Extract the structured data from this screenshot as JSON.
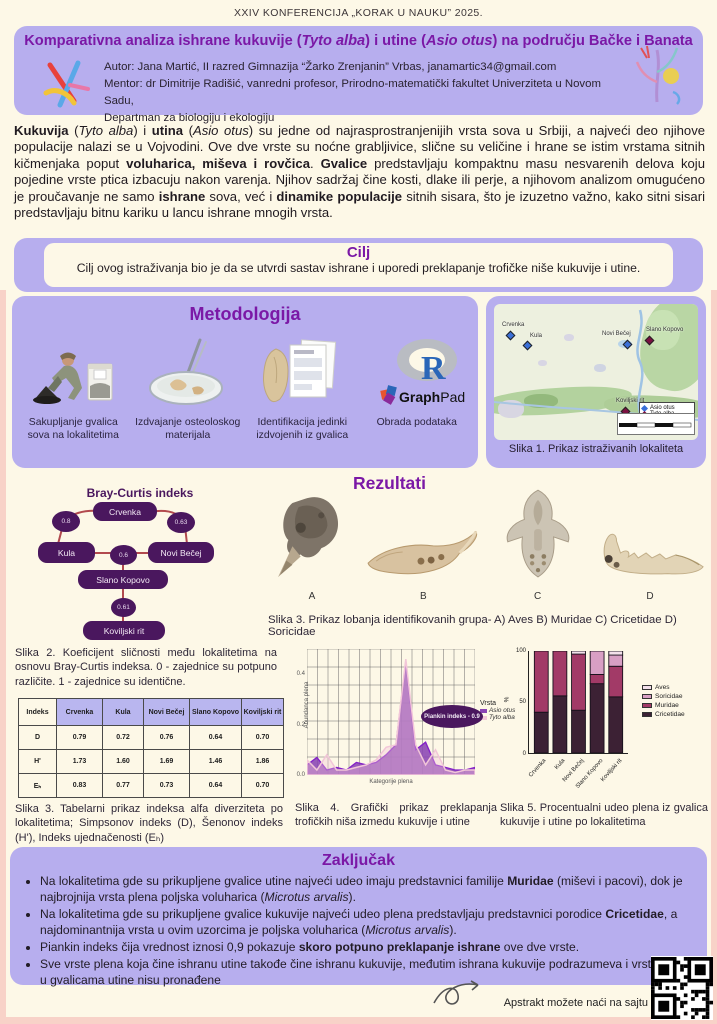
{
  "colors": {
    "accent_purple": "#7b18a6",
    "card_lavender": "#b7aeee",
    "node_purple": "#4a175e",
    "edge_red": "#b24a4e"
  },
  "page": {
    "conference": "XXIV KONFERENCIJA „KORAK U NAUKU” 2025."
  },
  "header": {
    "title_p1": "Komparativna analiza ishrane kukuvije (",
    "title_sp1": "Tyto alba",
    "title_p2": ") i utine (",
    "title_sp2": "Asio otus",
    "title_p3": ") na području Bačke i Banata",
    "author_line": "Autor: Jana Martić, II razred Gimnazija “Žarko Zrenjanin” Vrbas, janamartic34@gmail.com",
    "mentor_line1": "Mentor: dr Dimitrije Radišić, vanredni profesor, Prirodno-matematički fakultet Univerziteta u Novom Sadu,",
    "mentor_line2": "Departman za biologiju i ekologiju"
  },
  "intro": {
    "segments": [
      {
        "t": "Kukuvija",
        "b": 1
      },
      {
        "t": " ("
      },
      {
        "t": "Tyto alba",
        "i": 1
      },
      {
        "t": ") i "
      },
      {
        "t": "utina",
        "b": 1
      },
      {
        "t": " ("
      },
      {
        "t": "Asio otus",
        "i": 1
      },
      {
        "t": ") su jedne od najrasprostranjenijih vrsta sova u Srbiji, a najveći deo njihove populacije nalazi se u Vojvodini. Ove dve vrste su noćne grabljivice, slične su veličine i hrane se istim vrstama sitnih kičmenjaka poput "
      },
      {
        "t": "voluharica, miševa i rovčica",
        "b": 1
      },
      {
        "t": ". "
      },
      {
        "t": "Gvalice",
        "b": 1
      },
      {
        "t": " predstavljaju kompaktnu masu nesvarenih delova koju pojedine vrste ptica izbacuju nakon varenja. Njihov sadržaj čine kosti, dlake ili perje, a njihovom analizom omugućeno je proučavanje ne samo "
      },
      {
        "t": "ishrane",
        "b": 1
      },
      {
        "t": " sova, već i "
      },
      {
        "t": "dinamike populacije",
        "b": 1
      },
      {
        "t": " sitnih sisara, što je izuzetno važno, kako sitni sisari predstavljaju bitnu kariku u lancu ishrane mnogih vrsta."
      }
    ]
  },
  "cilj": {
    "title": "Cilj",
    "text": "Cilj ovog istraživanja bio je da se utvrdi sastav ishrane i uporedi preklapanje trofičke niše kukuvije i utine."
  },
  "methodology": {
    "title": "Metodologija",
    "steps": [
      {
        "icon": "pellet-collection-icon",
        "label": "Sakupljanje gvalica sova na lokalitetima"
      },
      {
        "icon": "petri-dish-icon",
        "label": "Izdvajanje osteoloskog materijala"
      },
      {
        "icon": "identification-icon",
        "label": "Identifikacija jedinki izdvojenih iz gvalica"
      },
      {
        "icon": "r-graphpad-icon",
        "label": "Obrada podataka"
      }
    ],
    "tools": {
      "r": "R",
      "graphpad_bold": "Graph",
      "graphpad_light": "Pad"
    }
  },
  "map": {
    "caption": "Slika 1. Prikaz istraživanih lokaliteta",
    "legend": [
      {
        "label": "Asio otus",
        "color": "#3a6fd8"
      },
      {
        "label": "Tyto alba",
        "color": "#7a1040"
      }
    ],
    "points": [
      {
        "name": "Crvenka",
        "species": "Asio otus"
      },
      {
        "name": "Kula",
        "species": "Asio otus"
      },
      {
        "name": "Novi Bečej",
        "species": "Asio otus"
      },
      {
        "name": "Slano Kopovo",
        "species": "Tyto alba"
      },
      {
        "name": "Koviljski rit",
        "species": "Tyto alba"
      }
    ]
  },
  "rezultati_title": "Rezultati",
  "bray_curtis": {
    "title": "Bray-Curtis indeks",
    "nodes": [
      "Crvenka",
      "Kula",
      "Novi Bečej",
      "Slano Kopovo",
      "Koviljski rit"
    ],
    "edges": [
      {
        "between": "Crvenka–Kula",
        "value": "0.8"
      },
      {
        "between": "Crvenka–Novi Bečej",
        "value": "0.63"
      },
      {
        "between": "Kula–Novi Bečej",
        "value": "0.6"
      },
      {
        "between": "Slano Kopovo–Koviljski rit",
        "value": "0.61"
      }
    ],
    "caption": "Slika 2. Koeficijent sličnosti među lokalitetima na osnovu Bray-Curtis indeksa. 0 - zajednice su potpuno različite. 1 - zajednice su identične."
  },
  "skulls": {
    "labels": [
      "A",
      "B",
      "C",
      "D"
    ],
    "caption": "Slika 3. Prikaz lobanja identifikovanih grupa- A) Aves B) Muridae C) Cricetidae D) Soricidae"
  },
  "alpha_table": {
    "headers": [
      "Indeks",
      "Crvenka",
      "Kula",
      "Novi Bečej",
      "Slano Kopovo",
      "Koviljski rit"
    ],
    "rows": [
      {
        "label": "D",
        "values": [
          "0.79",
          "0.72",
          "0.76",
          "0.64",
          "0.70"
        ]
      },
      {
        "label": "H'",
        "values": [
          "1.73",
          "1.60",
          "1.69",
          "1.46",
          "1.86"
        ]
      },
      {
        "label": "Eₕ",
        "values": [
          "0.83",
          "0.77",
          "0.73",
          "0.64",
          "0.70"
        ]
      }
    ],
    "caption": "Slika 3. Tabelarni prikaz indeksa alfa diverziteta po lokalitetima; Simpsonov indeks (D), Šenonov indeks (H'), Indeks ujednačenosti (Eₕ)"
  },
  "chart_data": [
    {
      "type": "area",
      "xlabel": "Kategorije plena",
      "ylabel": "Abundanca plena",
      "ylim": [
        0,
        0.5
      ],
      "yticks": [
        0,
        0.2,
        0.4
      ],
      "legend_title": "Vrsta",
      "annotation": "Piankin indeks - 0.9",
      "series": [
        {
          "name": "Asio otus",
          "color": "#8a43b4",
          "values": [
            0.04,
            0.07,
            0.02,
            0.03,
            0.02,
            0.05,
            0.04,
            0.05,
            0.08,
            0.12,
            0.45,
            0.1,
            0.13,
            0.04,
            0.03,
            0.02,
            0.02,
            0.03
          ]
        },
        {
          "name": "Tyto alba",
          "color": "#f2c6d8",
          "values": [
            0.06,
            0.02,
            0.08,
            0.02,
            0.02,
            0.03,
            0.04,
            0.06,
            0.11,
            0.12,
            0.46,
            0.12,
            0.04,
            0.1,
            0.02,
            0.01,
            0.02,
            0.02
          ]
        }
      ],
      "caption": "Slika 4. Grafički prikaz preklapanja trofičkih niša izmedu kukuvije i utine"
    },
    {
      "type": "bar",
      "stacked": true,
      "categories": [
        "Crvenka",
        "Kula",
        "Novi Bečej",
        "Slano Kopovo",
        "Koviljski rit"
      ],
      "series": [
        {
          "name": "Cricetidae",
          "color": "#3c2134",
          "values": [
            40,
            56,
            42,
            68,
            55
          ]
        },
        {
          "name": "Muridae",
          "color": "#a23a67",
          "values": [
            60,
            44,
            55,
            9,
            30
          ]
        },
        {
          "name": "Soricidae",
          "color": "#d89fc4",
          "values": [
            0,
            0,
            0,
            23,
            11
          ]
        },
        {
          "name": "Aves",
          "color": "#f3e0eb",
          "values": [
            0,
            0,
            3,
            0,
            4
          ]
        }
      ],
      "ylabel": "%",
      "yticks": [
        0,
        50,
        100
      ],
      "legend_order": [
        "Aves",
        "Soricidae",
        "Muridae",
        "Cricetidae"
      ],
      "caption": "Slika 5. Procentualni udeo plena iz gvalica kukuvije i utine po lokalitetima"
    }
  ],
  "conclusion": {
    "title": "Zaključak",
    "bullets": [
      [
        {
          "t": "Na lokalitetima gde su prikupljene gvalice utine najveći udeo imaju predstavnici familije "
        },
        {
          "t": "Muridae",
          "b": 1
        },
        {
          "t": " (miševi i pacovi), dok je najbrojnija vrsta plena poljska voluharica ("
        },
        {
          "t": "Microtus arvalis",
          "i": 1
        },
        {
          "t": ")."
        }
      ],
      [
        {
          "t": "Na lokalitetima gde su prikupljene gvalice kukuvije najveći udeo plena predstavljaju predstavnici porodice "
        },
        {
          "t": "Cricetidae",
          "b": 1
        },
        {
          "t": ", a najdominantnija vrsta u ovim uzorcima je poljska voluharica ("
        },
        {
          "t": "Microtus arvalis",
          "i": 1
        },
        {
          "t": ")."
        }
      ],
      [
        {
          "t": "Piankin indeks čija vrednost iznosi 0,9 pokazuje "
        },
        {
          "t": "skoro potpuno preklapanje ishrane",
          "b": 1
        },
        {
          "t": " ove dve vrste."
        }
      ],
      [
        {
          "t": "Sve vrste plena koja čine ishranu utine takođe čine ishranu kukuvije, međutim ishrana kukuvije podrazumeva i vrste koje u gvalicama utine nisu pronađene"
        }
      ]
    ]
  },
  "footer": {
    "abstract_note": "Apstrakt možete naći na sajtu"
  }
}
